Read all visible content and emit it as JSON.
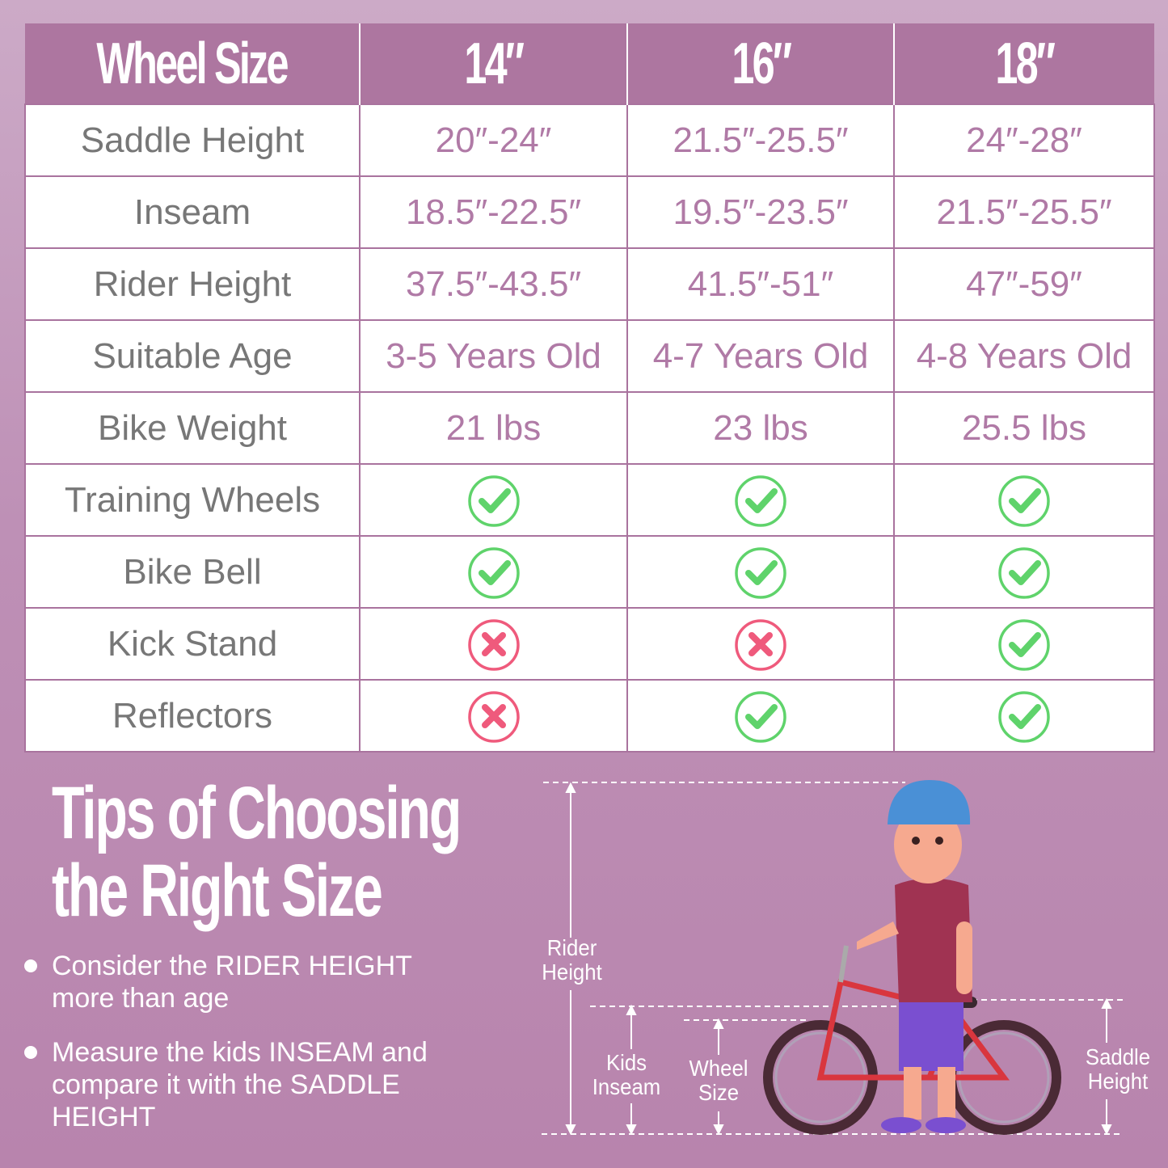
{
  "table": {
    "headers": [
      "Wheel Size",
      "14″",
      "16″",
      "18″"
    ],
    "rows": [
      {
        "label": "Saddle Height",
        "values": [
          "20″-24″",
          "21.5″-25.5″",
          "24″-28″"
        ]
      },
      {
        "label": "Inseam",
        "values": [
          "18.5″-22.5″",
          "19.5″-23.5″",
          "21.5″-25.5″"
        ]
      },
      {
        "label": "Rider Height",
        "values": [
          "37.5″-43.5″",
          "41.5″-51″",
          "47″-59″"
        ]
      },
      {
        "label": "Suitable Age",
        "values": [
          "3-5 Years Old",
          "4-7 Years Old",
          "4-8 Years Old"
        ]
      },
      {
        "label": "Bike Weight",
        "values": [
          "21 lbs",
          "23 lbs",
          "25.5 lbs"
        ]
      },
      {
        "label": "Training Wheels",
        "marks": [
          "check",
          "check",
          "check"
        ]
      },
      {
        "label": "Bike Bell",
        "marks": [
          "check",
          "check",
          "check"
        ]
      },
      {
        "label": "Kick Stand",
        "marks": [
          "cross",
          "cross",
          "check"
        ]
      },
      {
        "label": "Reflectors",
        "marks": [
          "cross",
          "check",
          "check"
        ]
      }
    ]
  },
  "tips": {
    "title_line1": "Tips of Choosing",
    "title_line2": "the Right Size",
    "bullets": [
      [
        "Consider the RIDER HEIGHT",
        "more than age"
      ],
      [
        "Measure the kids INSEAM and",
        "compare it with the SADDLE",
        "HEIGHT"
      ]
    ]
  },
  "diagram": {
    "rider_height": [
      "Rider",
      "Height"
    ],
    "kids_inseam": [
      "Kids",
      "Inseam"
    ],
    "wheel_size": [
      "Wheel",
      "Size"
    ],
    "saddle_height": [
      "Saddle",
      "Height"
    ]
  },
  "colors": {
    "header": "#ad76a0",
    "check": "#5fd36b",
    "cross": "#ef5a7c",
    "value_text": "#b07aa6",
    "label_text": "#777777"
  }
}
